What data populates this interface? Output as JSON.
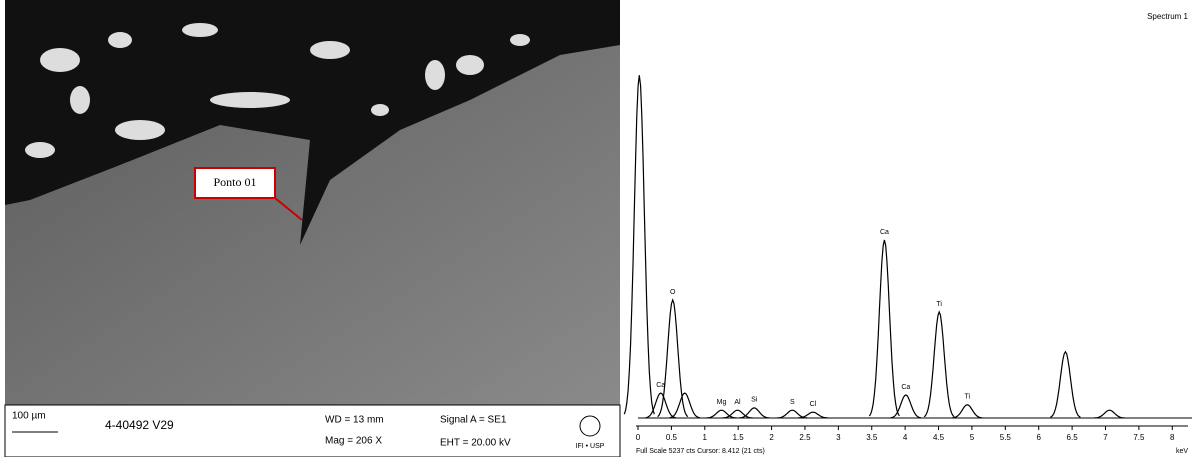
{
  "sem": {
    "point_label": "Ponto 01",
    "scale_bar": "100 µm",
    "sample_id": "4-40492 V29",
    "wd": "WD = 13 mm",
    "mag": "Mag = 206 X",
    "signal": "Signal A = SE1",
    "eht": "EHT = 20.00 kV",
    "logo": "IFI • USP"
  },
  "spectrum": {
    "title": "Spectrum 1",
    "xlim": [
      0,
      8.4
    ],
    "xticks": [
      0,
      0.5,
      1,
      1.5,
      2,
      2.5,
      3,
      3.5,
      4,
      4.5,
      5,
      5.5,
      6,
      6.5,
      7,
      7.5,
      8
    ],
    "x_unit": "keV",
    "footer": "Full Scale 5237 cts Cursor: 8.412 (21 cts)",
    "full_scale": 5237,
    "peaks": [
      {
        "label": null,
        "energy": 0.02,
        "height": 4400
      },
      {
        "label": "Ca",
        "energy": 0.34,
        "height": 320
      },
      {
        "label": "O",
        "energy": 0.52,
        "height": 1515
      },
      {
        "label": null,
        "energy": 0.7,
        "height": 320
      },
      {
        "label": "Mg",
        "energy": 1.25,
        "height": 100
      },
      {
        "label": "Al",
        "energy": 1.49,
        "height": 100
      },
      {
        "label": "Si",
        "energy": 1.74,
        "height": 130
      },
      {
        "label": "S",
        "energy": 2.31,
        "height": 100
      },
      {
        "label": "Cl",
        "energy": 2.62,
        "height": 75
      },
      {
        "label": "Ca",
        "energy": 3.69,
        "height": 2285
      },
      {
        "label": "Ca",
        "energy": 4.01,
        "height": 295
      },
      {
        "label": "Ti",
        "energy": 4.51,
        "height": 1360
      },
      {
        "label": "Ti",
        "energy": 4.93,
        "height": 170
      },
      {
        "label": null,
        "energy": 6.4,
        "height": 850
      },
      {
        "label": null,
        "energy": 7.06,
        "height": 100
      }
    ]
  }
}
